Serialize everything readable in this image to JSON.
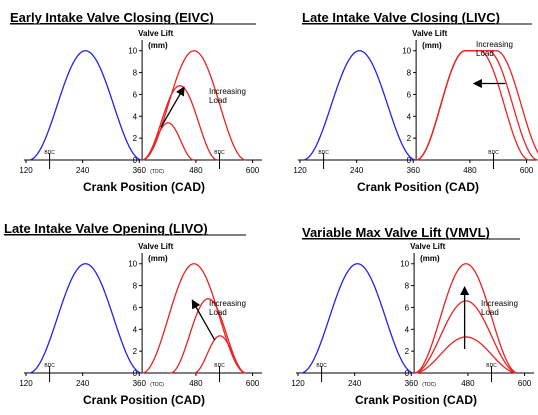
{
  "chart_data": [
    {
      "type": "line",
      "title": "Early Intake Valve Closing (EIVC)",
      "xlabel": "Crank Position (CAD)",
      "ylabel": "Valve Lift",
      "yunit": "(mm)",
      "xlim": [
        120,
        620
      ],
      "ylim": [
        0,
        10.8
      ],
      "xticks": [
        "120",
        "240",
        "360",
        "480",
        "600"
      ],
      "yticks": [
        "0",
        "2",
        "4",
        "6",
        "8",
        "10"
      ],
      "markers": [
        {
          "x": 170,
          "label": "BDC"
        },
        {
          "x": 530,
          "label": "BDC"
        }
      ],
      "tdc_label": "(TDC)",
      "annotation": "Increasing Load",
      "arrow": {
        "from": [
          406,
          3.0
        ],
        "to": [
          454,
          6.6
        ]
      },
      "series": [
        {
          "role": "exhaust",
          "color": "#2222ee",
          "x": [
            126,
            246,
            366
          ],
          "peak": 10
        },
        {
          "role": "intake",
          "color": "#ee2222",
          "x": [
            366,
            476,
            586
          ],
          "peak": 10
        },
        {
          "role": "intake",
          "color": "#ee2222",
          "x": [
            366,
            446,
            526
          ],
          "peak": 6.8
        },
        {
          "role": "intake",
          "color": "#ee2222",
          "x": [
            366,
            421,
            476
          ],
          "peak": 3.4
        }
      ]
    },
    {
      "type": "line",
      "title": "Late Intake Valve Closing (LIVC)",
      "xlabel": "Crank Position (CAD)",
      "ylabel": "Valve Lift",
      "yunit": "(mm)",
      "xlim": [
        120,
        620
      ],
      "ylim": [
        0,
        10.8
      ],
      "xticks": [
        "120",
        "240",
        "360",
        "480",
        "600"
      ],
      "yticks": [
        "0",
        "2",
        "4",
        "6",
        "8",
        "10"
      ],
      "markers": [
        {
          "x": 170,
          "label": "BDC"
        },
        {
          "x": 530,
          "label": "BDC"
        }
      ],
      "annotation": "Increasing Load",
      "arrow": {
        "from": [
          555,
          7.0
        ],
        "to": [
          490,
          7.0
        ]
      },
      "series": [
        {
          "role": "exhaust",
          "color": "#2222ee",
          "x": [
            126,
            246,
            366
          ],
          "peak": 10
        },
        {
          "role": "intake",
          "color": "#ee2222",
          "x": [
            366,
            470,
            500,
            606
          ],
          "peak": 10
        },
        {
          "role": "intake",
          "color": "#ee2222",
          "x": [
            366,
            470,
            518,
            624
          ],
          "peak": 10
        },
        {
          "role": "intake",
          "color": "#ee2222",
          "x": [
            366,
            470,
            536,
            642
          ],
          "peak": 10
        }
      ]
    },
    {
      "type": "line",
      "title": "Late Intake Valve Opening (LIVO)",
      "xlabel": "Crank Position (CAD)",
      "ylabel": "Valve Lift",
      "yunit": "(mm)",
      "xlim": [
        120,
        620
      ],
      "ylim": [
        0,
        10.8
      ],
      "xticks": [
        "120",
        "240",
        "360",
        "480",
        "600"
      ],
      "yticks": [
        "0",
        "2",
        "4",
        "6",
        "8",
        "10"
      ],
      "markers": [
        {
          "x": 170,
          "label": "BDC"
        },
        {
          "x": 530,
          "label": "BDC"
        }
      ],
      "tdc_label": "(TDC)",
      "annotation": "Increasing Load",
      "arrow": {
        "from": [
          520,
          3.0
        ],
        "to": [
          473,
          6.6
        ]
      },
      "series": [
        {
          "role": "exhaust",
          "color": "#2222ee",
          "x": [
            126,
            246,
            366
          ],
          "peak": 10
        },
        {
          "role": "intake",
          "color": "#ee2222",
          "x": [
            366,
            476,
            586
          ],
          "peak": 10
        },
        {
          "role": "intake",
          "color": "#ee2222",
          "x": [
            426,
            506,
            586
          ],
          "peak": 6.8
        },
        {
          "role": "intake",
          "color": "#ee2222",
          "x": [
            476,
            531,
            586
          ],
          "peak": 3.4
        }
      ]
    },
    {
      "type": "line",
      "title": "Variable Max Valve Lift (VMVL)",
      "xlabel": "Crank Position (CAD)",
      "ylabel": "Valve Lift",
      "yunit": "(mm)",
      "xlim": [
        120,
        620
      ],
      "ylim": [
        0,
        10.8
      ],
      "xticks": [
        "120",
        "240",
        "360",
        "480",
        "600"
      ],
      "yticks": [
        "0",
        "2",
        "4",
        "6",
        "8",
        "10"
      ],
      "markers": [
        {
          "x": 170,
          "label": "BDC"
        },
        {
          "x": 530,
          "label": "BDC"
        }
      ],
      "tdc_label": "(TDC)",
      "annotation": "Increasing Load",
      "arrow": {
        "from": [
          473,
          2.2
        ],
        "to": [
          473,
          7.8
        ]
      },
      "series": [
        {
          "role": "exhaust",
          "color": "#2222ee",
          "x": [
            126,
            246,
            366
          ],
          "peak": 10
        },
        {
          "role": "intake",
          "color": "#ee2222",
          "x": [
            366,
            476,
            586
          ],
          "peak": 10
        },
        {
          "role": "intake",
          "color": "#ee2222",
          "x": [
            366,
            476,
            586
          ],
          "peak": 6.6
        },
        {
          "role": "intake",
          "color": "#ee2222",
          "x": [
            366,
            476,
            586
          ],
          "peak": 3.3
        }
      ]
    }
  ]
}
